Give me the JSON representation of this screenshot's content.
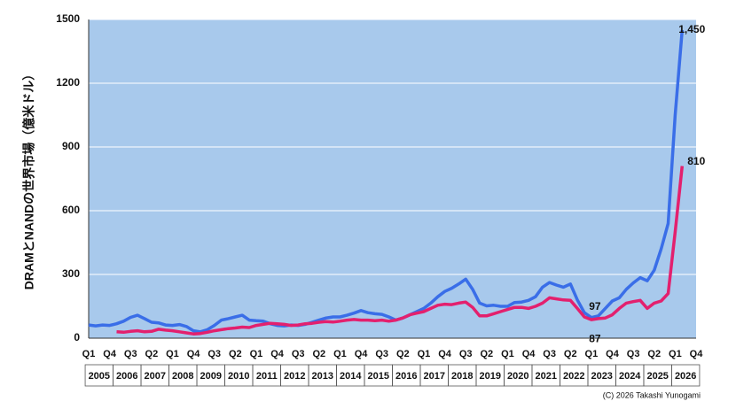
{
  "chart_data": {
    "type": "line",
    "y_axis_label": "DRAMとNANDの世界市場（億米ドル）",
    "credit": "(C) 2026 Takashi Yunogami",
    "categories": [
      "Q1",
      null,
      null,
      "Q4",
      null,
      null,
      "Q3",
      null,
      null,
      "Q2",
      null,
      null,
      "Q1",
      null,
      null,
      "Q4",
      null,
      null,
      "Q3",
      null,
      null,
      "Q2",
      null,
      null,
      "Q1",
      null,
      null,
      "Q4",
      null,
      null,
      "Q3",
      null,
      null,
      "Q2",
      null,
      null,
      "Q1",
      null,
      null,
      "Q4",
      null,
      null,
      "Q3",
      null,
      null,
      "Q2",
      null,
      null,
      "Q1",
      null,
      null,
      "Q4",
      null,
      null,
      "Q3",
      null,
      null,
      "Q2",
      null,
      null,
      "Q1",
      null,
      null,
      "Q4",
      null,
      null,
      "Q3",
      null,
      null,
      "Q2",
      null,
      null,
      "Q1",
      null,
      null,
      "Q4",
      null,
      null,
      "Q3",
      null,
      null,
      "Q2",
      null,
      null,
      "Q1",
      null,
      null,
      "Q4"
    ],
    "years": [
      "2005",
      "2006",
      "2007",
      "2008",
      "2009",
      "2010",
      "2011",
      "2012",
      "2013",
      "2014",
      "2015",
      "2016",
      "2017",
      "2018",
      "2019",
      "2020",
      "2021",
      "2022",
      "2023",
      "2024",
      "2025",
      "2026"
    ],
    "series": [
      {
        "name": "DRAM",
        "color": "#3a6ee8",
        "values": [
          62,
          58,
          62,
          60,
          68,
          80,
          98,
          108,
          92,
          75,
          72,
          62,
          60,
          64,
          55,
          35,
          30,
          40,
          60,
          85,
          92,
          100,
          108,
          85,
          82,
          80,
          68,
          60,
          58,
          62,
          60,
          65,
          75,
          85,
          95,
          100,
          100,
          108,
          118,
          130,
          120,
          115,
          112,
          100,
          85,
          95,
          110,
          125,
          140,
          165,
          195,
          220,
          235,
          255,
          278,
          230,
          165,
          152,
          155,
          150,
          150,
          168,
          170,
          178,
          195,
          240,
          262,
          250,
          240,
          255,
          180,
          120,
          97,
          105,
          140,
          175,
          190,
          230,
          260,
          285,
          270,
          320,
          420,
          540,
          1050,
          1450,
          null,
          null
        ],
        "value_labels": [
          null,
          null,
          null,
          null,
          null,
          null,
          null,
          null,
          null,
          null,
          null,
          null,
          null,
          null,
          null,
          null,
          null,
          null,
          null,
          null,
          null,
          null,
          null,
          null,
          null,
          null,
          null,
          null,
          null,
          null,
          null,
          null,
          null,
          null,
          null,
          null,
          null,
          null,
          null,
          null,
          null,
          null,
          null,
          null,
          null,
          null,
          null,
          null,
          null,
          null,
          null,
          null,
          null,
          null,
          null,
          null,
          null,
          null,
          null,
          null,
          null,
          null,
          null,
          null,
          null,
          null,
          null,
          null,
          null,
          null,
          null,
          null,
          "97",
          null,
          null,
          null,
          null,
          null,
          null,
          null,
          null,
          null,
          null,
          null,
          null,
          "1,450",
          null,
          null
        ]
      },
      {
        "name": "NAND",
        "color": "#e3206e",
        "values": [
          null,
          null,
          null,
          null,
          30,
          28,
          32,
          35,
          30,
          32,
          42,
          38,
          35,
          30,
          25,
          20,
          22,
          28,
          35,
          40,
          45,
          48,
          52,
          50,
          60,
          65,
          70,
          68,
          65,
          60,
          62,
          68,
          70,
          75,
          78,
          76,
          80,
          85,
          88,
          85,
          85,
          82,
          85,
          80,
          85,
          95,
          110,
          118,
          125,
          140,
          155,
          160,
          158,
          165,
          170,
          145,
          105,
          105,
          115,
          125,
          135,
          145,
          145,
          140,
          150,
          165,
          190,
          185,
          180,
          178,
          140,
          100,
          87,
          92,
          95,
          110,
          140,
          165,
          172,
          178,
          140,
          165,
          175,
          210,
          500,
          810,
          null,
          null
        ],
        "value_labels": [
          null,
          null,
          null,
          null,
          null,
          null,
          null,
          null,
          null,
          null,
          null,
          null,
          null,
          null,
          null,
          null,
          null,
          null,
          null,
          null,
          null,
          null,
          null,
          null,
          null,
          null,
          null,
          null,
          null,
          null,
          null,
          null,
          null,
          null,
          null,
          null,
          null,
          null,
          null,
          null,
          null,
          null,
          null,
          null,
          null,
          null,
          null,
          null,
          null,
          null,
          null,
          null,
          null,
          null,
          null,
          null,
          null,
          null,
          null,
          null,
          null,
          null,
          null,
          null,
          null,
          null,
          null,
          null,
          null,
          null,
          null,
          null,
          "87",
          null,
          null,
          null,
          null,
          null,
          null,
          null,
          null,
          null,
          null,
          null,
          null,
          "810",
          null,
          null
        ]
      }
    ],
    "ylim": [
      0,
      1500
    ],
    "yticks": [
      0,
      300,
      600,
      900,
      1200,
      1500
    ],
    "grid": true,
    "plot_color": "#a8c9ec"
  }
}
